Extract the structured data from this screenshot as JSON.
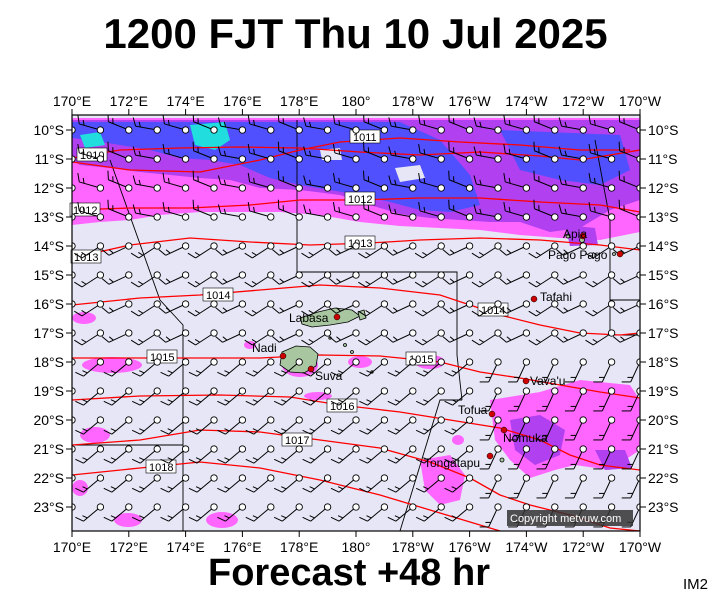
{
  "title": "1200 FJT Thu 10 Jul 2025",
  "footer": "Forecast +48 hr",
  "code": "IM2",
  "copyright": "Copyright metvuw.com",
  "lon_labels": [
    "170°E",
    "172°E",
    "174°E",
    "176°E",
    "178°E",
    "180°",
    "178°W",
    "176°W",
    "174°W",
    "172°W",
    "170°W"
  ],
  "lat_labels": [
    "10°S",
    "11°S",
    "12°S",
    "13°S",
    "14°S",
    "15°S",
    "16°S",
    "17°S",
    "18°S",
    "19°S",
    "20°S",
    "21°S",
    "22°S",
    "23°S"
  ],
  "isobar_labels": [
    "1010",
    "1011",
    "1012",
    "1012",
    "1013",
    "1013",
    "1014",
    "1014",
    "1015",
    "1015",
    "1016",
    "1017",
    "1018"
  ],
  "places": [
    "Apia",
    "Pago Pago",
    "Tafahi",
    "Labasa",
    "Nadi",
    "Suva",
    "Vava'u",
    "Tofua",
    "Nomuka",
    "Tongatapu"
  ],
  "colors": {
    "background": "#e6e6f6",
    "rain_light": "#ff66ff",
    "rain_heavy": "#a020f0",
    "rain_blue": "#3333ff",
    "rain_cyan": "#22dddd",
    "isobar": "#ff0000",
    "land": "#a8c6a0",
    "city": "#cc0000"
  }
}
